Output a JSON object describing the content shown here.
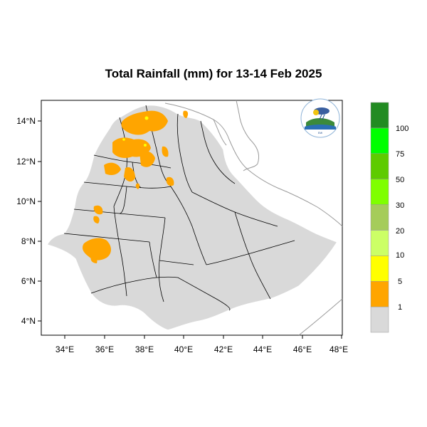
{
  "title": "Total Rainfall (mm) for 13-14 Feb 2025",
  "axes": {
    "x_ticks": [
      "34°E",
      "36°E",
      "38°E",
      "40°E",
      "42°E",
      "44°E",
      "46°E",
      "48°E"
    ],
    "y_ticks": [
      "14°N",
      "12°N",
      "10°N",
      "8°N",
      "6°N",
      "4°N"
    ]
  },
  "legend": {
    "labels": [
      "1",
      "5",
      "10",
      "20",
      "30",
      "50",
      "75",
      "100"
    ],
    "colors": [
      "#d9d9d9",
      "#ffa500",
      "#ffff00",
      "#ccff66",
      "#a5cc5a",
      "#7fff00",
      "#5ecb00",
      "#00ff00",
      "#228b22"
    ]
  },
  "logo": {
    "name": "ethiopian-meteorology-institute-logo"
  },
  "colors": {
    "land": "#d9d9d9",
    "rain_1_5": "#ffa500",
    "rain_5_10": "#ffff00"
  }
}
